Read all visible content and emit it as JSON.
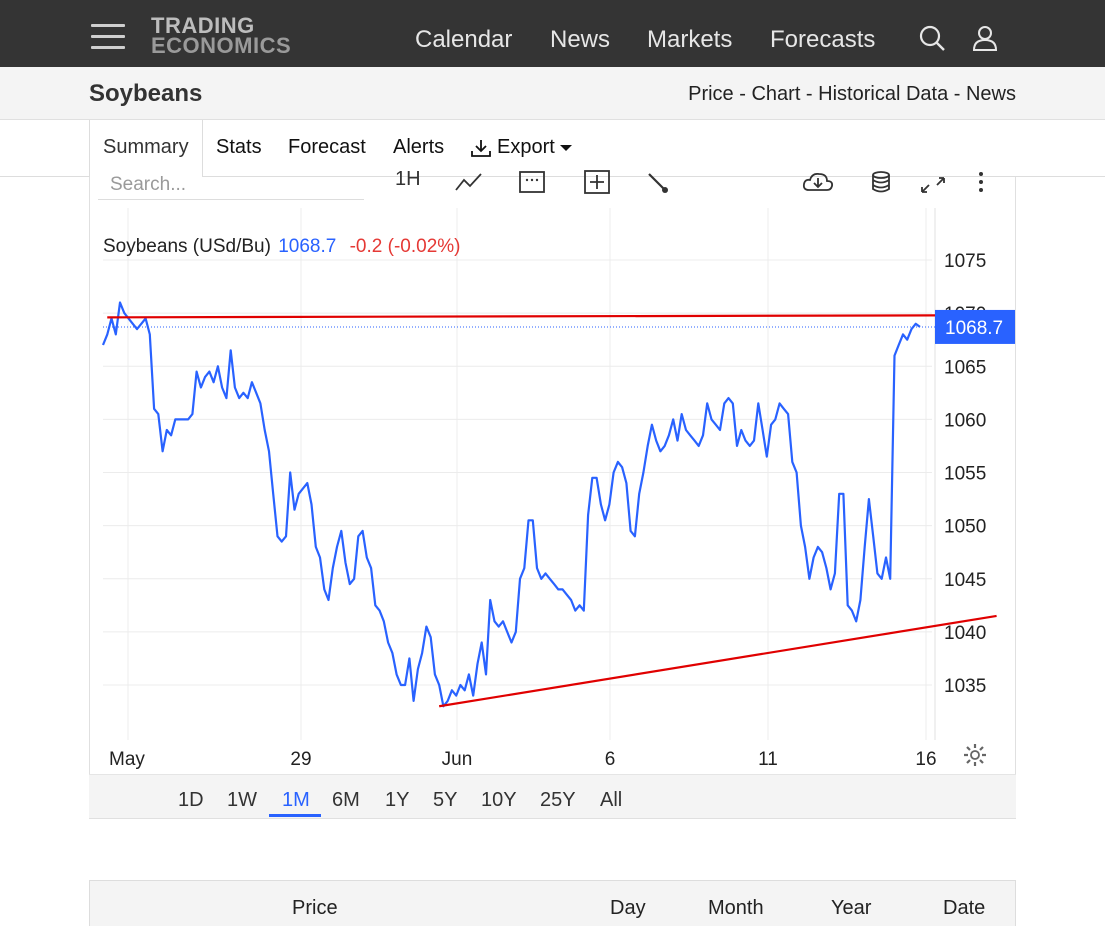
{
  "header": {
    "logo_line1": "TRADING",
    "logo_line2": "ECONOMICS",
    "nav": [
      "Calendar",
      "News",
      "Markets",
      "Forecasts"
    ]
  },
  "title_bar": {
    "title": "Soybeans",
    "links": [
      "Price",
      "Chart",
      "Historical Data",
      "News"
    ],
    "separator": " - "
  },
  "tabs": [
    "Summary",
    "Stats",
    "Forecast",
    "Alerts",
    "Export"
  ],
  "toolbar": {
    "search_placeholder": "Search...",
    "interval_label": "1H"
  },
  "chart_header": {
    "name": "Soybeans (USd/Bu)",
    "price": "1068.7",
    "change": "-0.2 (-0.02%)"
  },
  "chart_data": {
    "type": "line",
    "title": "Soybeans (USd/Bu)",
    "x_tick_labels": [
      "May",
      "29",
      "Jun",
      "6",
      "11",
      "16"
    ],
    "y_ticks": [
      1035,
      1040,
      1045,
      1050,
      1055,
      1060,
      1065,
      1070,
      1075
    ],
    "ylim": [
      1030,
      1078
    ],
    "last_price_label": "1068.7",
    "last_value": 1068.7,
    "colors": {
      "line": "#2962ff",
      "trendline": "#e00000",
      "last_price_bg": "#2962ff"
    },
    "series": [
      {
        "values": [
          1067,
          1068,
          1069.5,
          1068,
          1071,
          1070,
          1069.5,
          1069,
          1068.5,
          1069,
          1069.5,
          1068,
          1061,
          1060.5,
          1057,
          1059,
          1058.5,
          1060,
          1060,
          1060,
          1060,
          1060.5,
          1064.5,
          1063,
          1064,
          1064.5,
          1063.5,
          1065,
          1063,
          1062,
          1066.5,
          1063,
          1062,
          1062.5,
          1062,
          1063.5,
          1062.5,
          1061.5,
          1059,
          1057,
          1053,
          1049,
          1048.5,
          1049,
          1055,
          1051.5,
          1053,
          1053.5,
          1054,
          1052,
          1048,
          1047,
          1044,
          1043,
          1046,
          1048,
          1049.5,
          1046.5,
          1044.5,
          1045,
          1049,
          1049.5,
          1047,
          1046,
          1042.5,
          1042,
          1041,
          1039,
          1038,
          1036,
          1035,
          1035,
          1037.5,
          1033.5,
          1036.5,
          1038,
          1040.5,
          1039.5,
          1036,
          1035,
          1033,
          1033.5,
          1034.5,
          1034,
          1035,
          1034.5,
          1036,
          1034,
          1037,
          1039,
          1036,
          1043,
          1041,
          1040.5,
          1041,
          1040,
          1039,
          1040,
          1045,
          1046,
          1050.5,
          1050.5,
          1046,
          1045,
          1045.5,
          1045,
          1044.5,
          1044,
          1044,
          1043.5,
          1043,
          1042,
          1042.5,
          1042,
          1051,
          1054.5,
          1054.5,
          1052,
          1050.5,
          1052,
          1055,
          1056,
          1055.5,
          1054,
          1049.5,
          1049,
          1053,
          1055,
          1057.5,
          1059.5,
          1058,
          1057,
          1057.5,
          1058.5,
          1060,
          1058,
          1060.5,
          1059,
          1058.5,
          1058,
          1057.5,
          1058.5,
          1061.5,
          1060,
          1059.5,
          1059,
          1061.5,
          1062,
          1061.5,
          1057.5,
          1059,
          1058,
          1057.5,
          1058,
          1061.5,
          1059,
          1056.5,
          1059.5,
          1060,
          1061.5,
          1061,
          1060.5,
          1056,
          1055,
          1050,
          1048,
          1045,
          1047,
          1048,
          1047.5,
          1046,
          1044,
          1045.5,
          1053,
          1053,
          1042.5,
          1042,
          1041,
          1043,
          1048,
          1052.5,
          1049,
          1045.5,
          1045,
          1047,
          1045,
          1066,
          1067,
          1068,
          1067.5,
          1068.5,
          1069,
          1068.7
        ]
      }
    ],
    "trendlines": [
      {
        "x": [
          1,
          206
        ],
        "y": [
          1069.6,
          1069.8
        ]
      },
      {
        "x": [
          79,
          210
        ],
        "y": [
          1033,
          1041.5
        ]
      }
    ]
  },
  "periods": [
    "1D",
    "1W",
    "1M",
    "6M",
    "1Y",
    "5Y",
    "10Y",
    "25Y",
    "All"
  ],
  "active_period": "1M",
  "table": {
    "headers": [
      "Price",
      "Day",
      "Month",
      "Year",
      "Date"
    ]
  }
}
